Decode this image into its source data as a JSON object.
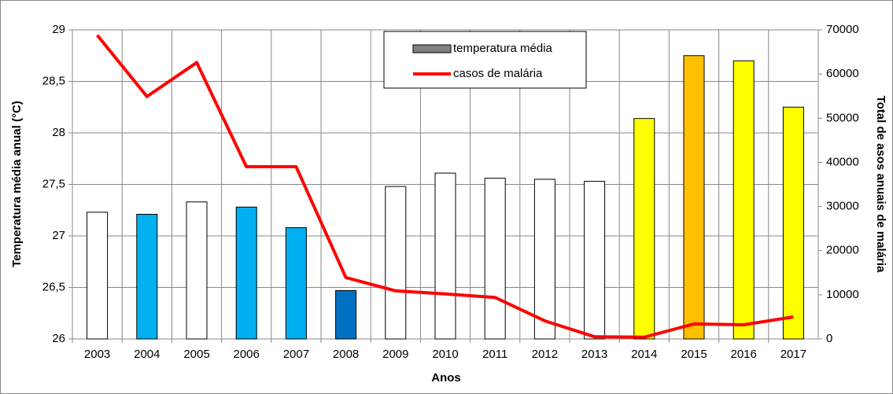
{
  "chart_data": {
    "type": "bar",
    "x_label": "Anos",
    "y_label": "Temperatura média anual (°C)",
    "y2_label": "Total de asos anuais de malária",
    "categories": [
      "2003",
      "2004",
      "2005",
      "2006",
      "2007",
      "2008",
      "2009",
      "2010",
      "2011",
      "2012",
      "2013",
      "2014",
      "2015",
      "2016",
      "2017"
    ],
    "series": [
      {
        "name": "temperatura média",
        "type": "bar",
        "color": "#808080",
        "colors": [
          "#ffffff",
          "#00b0f0",
          "#ffffff",
          "#00b0f0",
          "#00b0f0",
          "#0070c0",
          "#ffffff",
          "#ffffff",
          "#ffffff",
          "#ffffff",
          "#ffffff",
          "#ffff00",
          "#ffc000",
          "#ffff00",
          "#ffff00"
        ],
        "values": [
          27.23,
          27.21,
          27.33,
          27.28,
          27.08,
          26.47,
          27.48,
          27.61,
          27.56,
          27.55,
          27.53,
          28.14,
          28.75,
          28.7,
          28.25
        ]
      },
      {
        "name": "casos de malária",
        "type": "line",
        "axis": "y2",
        "color": "#ff0000",
        "values": [
          68800,
          54900,
          62600,
          39000,
          39000,
          13900,
          10900,
          10200,
          9400,
          4100,
          500,
          400,
          3400,
          3200,
          5000
        ]
      }
    ],
    "ylim": [
      26,
      29
    ],
    "yticks": [
      26,
      {
        "value": 26.5,
        "label": "26,5"
      },
      27,
      {
        "value": 27.5,
        "label": "27,5"
      },
      28,
      {
        "value": 28.5,
        "label": "28,5"
      },
      29
    ],
    "y2lim": [
      0,
      70000
    ],
    "y2ticks": [
      0,
      10000,
      20000,
      30000,
      40000,
      50000,
      60000,
      70000
    ],
    "grid": true,
    "legend": "top"
  }
}
